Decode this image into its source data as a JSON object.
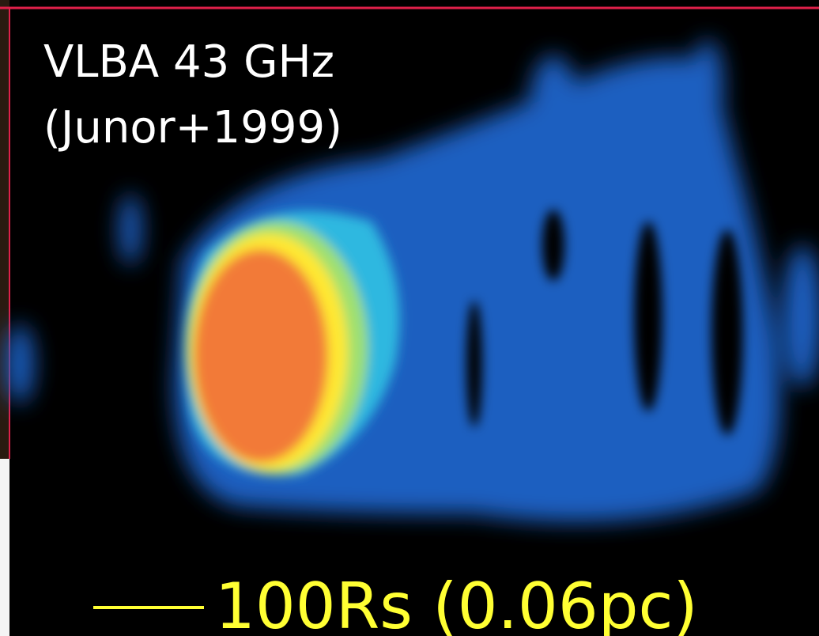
{
  "labels": {
    "instrument": "VLBA 43 GHz",
    "reference": "(Junor+1999)",
    "scale_bar": "100Rs (0.06pc)"
  }
}
